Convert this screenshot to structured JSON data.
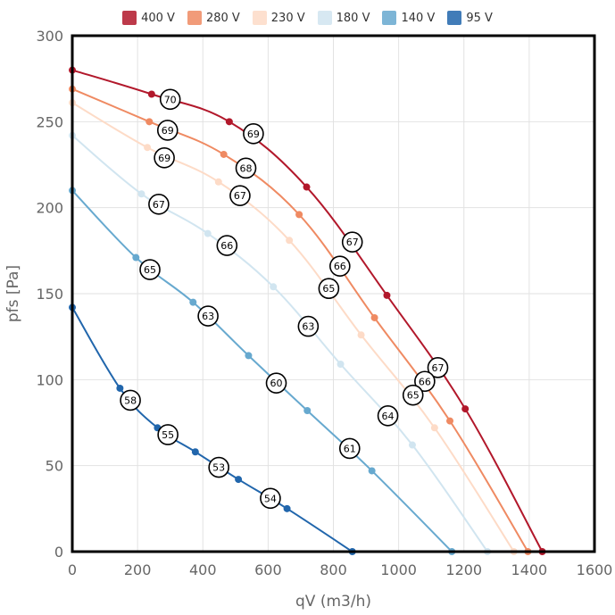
{
  "chart_data": {
    "type": "line",
    "xlabel": "qV (m3/h)",
    "ylabel": "pfs [Pa]",
    "xlim": [
      0,
      1600
    ],
    "ylim": [
      0,
      300
    ],
    "xticks": [
      0,
      200,
      400,
      600,
      800,
      1000,
      1200,
      1400,
      1600
    ],
    "yticks": [
      0,
      50,
      100,
      150,
      200,
      250,
      300
    ],
    "legend_position": "top",
    "series": [
      {
        "name": "400 V",
        "color": "#b2182b",
        "points": [
          [
            0,
            280
          ],
          [
            243,
            266
          ],
          [
            481,
            250
          ],
          [
            718,
            212
          ],
          [
            964,
            149
          ],
          [
            1204,
            83
          ],
          [
            1440,
            0
          ]
        ],
        "labels": [
          [
            300,
            263,
            "70"
          ],
          [
            555,
            243,
            "69"
          ],
          [
            858,
            180,
            "67"
          ],
          [
            1120,
            107,
            "67"
          ]
        ]
      },
      {
        "name": "280 V",
        "color": "#ef8a62",
        "points": [
          [
            0,
            269
          ],
          [
            236,
            250
          ],
          [
            464,
            231
          ],
          [
            695,
            196
          ],
          [
            926,
            136
          ],
          [
            1157,
            76
          ],
          [
            1396,
            0
          ]
        ],
        "labels": [
          [
            292,
            245,
            "69"
          ],
          [
            532,
            223,
            "68"
          ],
          [
            820,
            166,
            "66"
          ],
          [
            1080,
            99,
            "66"
          ]
        ]
      },
      {
        "name": "230 V",
        "color": "#fddbc7",
        "points": [
          [
            0,
            261
          ],
          [
            230,
            235
          ],
          [
            448,
            215
          ],
          [
            665,
            181
          ],
          [
            885,
            126
          ],
          [
            1110,
            72
          ],
          [
            1353,
            0
          ]
        ],
        "labels": [
          [
            282,
            229,
            "69"
          ],
          [
            514,
            207,
            "67"
          ],
          [
            786,
            153,
            "65"
          ],
          [
            1044,
            91,
            "65"
          ]
        ]
      },
      {
        "name": "180 V",
        "color": "#d1e5f0",
        "points": [
          [
            0,
            242
          ],
          [
            212,
            208
          ],
          [
            415,
            185
          ],
          [
            616,
            154
          ],
          [
            822,
            109
          ],
          [
            1042,
            62
          ],
          [
            1272,
            0
          ]
        ],
        "labels": [
          [
            265,
            202,
            "67"
          ],
          [
            474,
            178,
            "66"
          ],
          [
            723,
            131,
            "63"
          ],
          [
            967,
            79,
            "64"
          ]
        ]
      },
      {
        "name": "140 V",
        "color": "#67a9cf",
        "points": [
          [
            0,
            210
          ],
          [
            195,
            171
          ],
          [
            370,
            145
          ],
          [
            540,
            114
          ],
          [
            720,
            82
          ],
          [
            918,
            47
          ],
          [
            1163,
            0
          ]
        ],
        "labels": [
          [
            238,
            164,
            "65"
          ],
          [
            416,
            137,
            "63"
          ],
          [
            625,
            98,
            "60"
          ],
          [
            850,
            60,
            "61"
          ]
        ]
      },
      {
        "name": "95 V",
        "color": "#2166ac",
        "points": [
          [
            0,
            142
          ],
          [
            146,
            95
          ],
          [
            261,
            72
          ],
          [
            377,
            58
          ],
          [
            509,
            42
          ],
          [
            658,
            25
          ],
          [
            858,
            0
          ]
        ],
        "labels": [
          [
            178,
            88,
            "58"
          ],
          [
            293,
            68,
            "55"
          ],
          [
            449,
            49,
            "53"
          ],
          [
            607,
            31,
            "54"
          ]
        ]
      }
    ]
  }
}
